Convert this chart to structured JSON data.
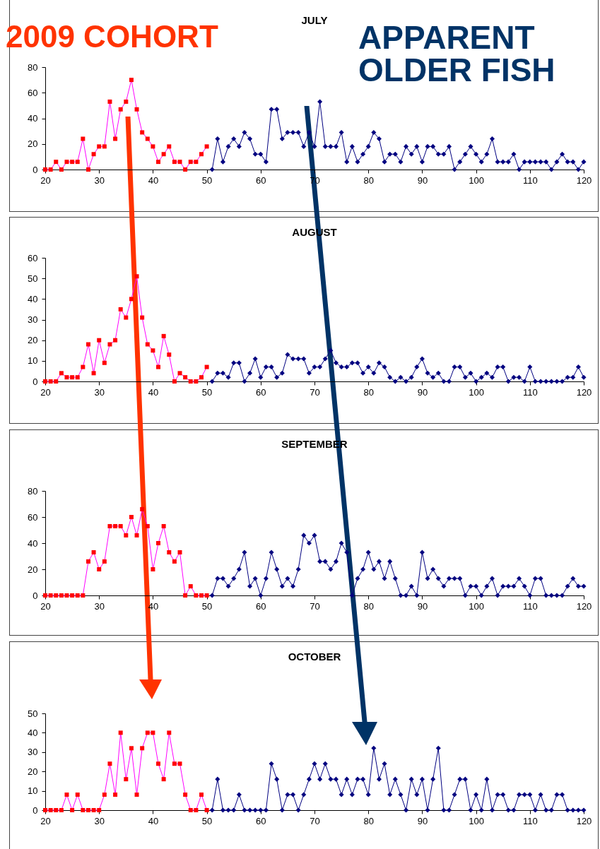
{
  "chart_data": [
    {
      "type": "line",
      "title": "JULY",
      "annotations": [
        "2009 COHORT",
        "APPARENT OLDER FISH"
      ],
      "xlim": [
        20,
        120
      ],
      "xticks": [
        20,
        30,
        40,
        50,
        60,
        70,
        80,
        90,
        100,
        110,
        120
      ],
      "ylim": [
        0,
        80
      ],
      "yticks": [
        0,
        20,
        40,
        60,
        80
      ],
      "series": [
        {
          "color": "#ff0000",
          "marker": "square",
          "x": [
            20,
            21,
            22,
            23,
            24,
            25,
            26,
            27,
            28,
            29,
            30,
            31,
            32,
            33,
            34,
            35,
            36,
            37,
            38,
            39,
            40,
            41,
            42,
            43,
            44,
            45,
            46,
            47,
            48,
            49,
            50
          ],
          "values": [
            0,
            0,
            6,
            0,
            6,
            6,
            6,
            24,
            0,
            12,
            18,
            18,
            53,
            24,
            47,
            53,
            70,
            47,
            29,
            24,
            18,
            6,
            12,
            18,
            6,
            6,
            0,
            6,
            6,
            12,
            18
          ]
        },
        {
          "color": "#000080",
          "marker": "diamond",
          "x": [
            51,
            52,
            53,
            54,
            55,
            56,
            57,
            58,
            59,
            60,
            61,
            62,
            63,
            64,
            65,
            66,
            67,
            68,
            69,
            70,
            71,
            72,
            73,
            74,
            75,
            76,
            77,
            78,
            79,
            80,
            81,
            82,
            83,
            84,
            85,
            86,
            87,
            88,
            89,
            90,
            91,
            92,
            93,
            94,
            95,
            96,
            97,
            98,
            99,
            100,
            101,
            102,
            103,
            104,
            105,
            106,
            107,
            108,
            109,
            110,
            111,
            112,
            113,
            114,
            115,
            116,
            117,
            118,
            119,
            120
          ],
          "values": [
            0,
            24,
            6,
            18,
            24,
            18,
            29,
            24,
            12,
            12,
            6,
            47,
            47,
            24,
            29,
            29,
            29,
            18,
            29,
            18,
            53,
            18,
            18,
            18,
            29,
            6,
            18,
            6,
            12,
            18,
            29,
            24,
            6,
            12,
            12,
            6,
            18,
            12,
            18,
            6,
            18,
            18,
            12,
            12,
            18,
            0,
            6,
            12,
            18,
            12,
            6,
            12,
            24,
            6,
            6,
            6,
            12,
            0,
            6,
            6,
            6,
            6,
            6,
            0,
            6,
            12,
            6,
            6,
            0,
            6
          ]
        }
      ]
    },
    {
      "type": "line",
      "title": "AUGUST",
      "xlim": [
        20,
        120
      ],
      "xticks": [
        20,
        30,
        40,
        50,
        60,
        70,
        80,
        90,
        100,
        110,
        120
      ],
      "ylim": [
        0,
        60
      ],
      "yticks": [
        0,
        10,
        20,
        30,
        40,
        50,
        60
      ],
      "series": [
        {
          "color": "#ff0000",
          "marker": "square",
          "x": [
            20,
            21,
            22,
            23,
            24,
            25,
            26,
            27,
            28,
            29,
            30,
            31,
            32,
            33,
            34,
            35,
            36,
            37,
            38,
            39,
            40,
            41,
            42,
            43,
            44,
            45,
            46,
            47,
            48,
            49,
            50
          ],
          "values": [
            0,
            0,
            0,
            4,
            2,
            2,
            2,
            7,
            18,
            4,
            20,
            9,
            18,
            20,
            35,
            31,
            40,
            51,
            31,
            18,
            15,
            7,
            22,
            13,
            0,
            4,
            2,
            0,
            0,
            2,
            7
          ]
        },
        {
          "color": "#000080",
          "marker": "diamond",
          "x": [
            51,
            52,
            53,
            54,
            55,
            56,
            57,
            58,
            59,
            60,
            61,
            62,
            63,
            64,
            65,
            66,
            67,
            68,
            69,
            70,
            71,
            72,
            73,
            74,
            75,
            76,
            77,
            78,
            79,
            80,
            81,
            82,
            83,
            84,
            85,
            86,
            87,
            88,
            89,
            90,
            91,
            92,
            93,
            94,
            95,
            96,
            97,
            98,
            99,
            100,
            101,
            102,
            103,
            104,
            105,
            106,
            107,
            108,
            109,
            110,
            111,
            112,
            113,
            114,
            115,
            116,
            117,
            118,
            119,
            120
          ],
          "values": [
            0,
            4,
            4,
            2,
            9,
            9,
            0,
            4,
            11,
            2,
            7,
            7,
            2,
            4,
            13,
            11,
            11,
            11,
            4,
            7,
            7,
            11,
            15,
            9,
            7,
            7,
            9,
            9,
            4,
            7,
            4,
            9,
            7,
            2,
            0,
            2,
            0,
            2,
            7,
            11,
            4,
            2,
            4,
            0,
            0,
            7,
            7,
            2,
            4,
            0,
            2,
            4,
            2,
            7,
            7,
            0,
            2,
            2,
            0,
            7,
            0,
            0,
            0,
            0,
            0,
            0,
            2,
            2,
            7,
            2
          ]
        }
      ]
    },
    {
      "type": "line",
      "title": "SEPTEMBER",
      "xlim": [
        20,
        120
      ],
      "xticks": [
        20,
        30,
        40,
        50,
        60,
        70,
        80,
        90,
        100,
        110,
        120
      ],
      "ylim": [
        0,
        80
      ],
      "yticks": [
        0,
        20,
        40,
        60,
        80
      ],
      "series": [
        {
          "color": "#ff0000",
          "marker": "square",
          "x": [
            20,
            21,
            22,
            23,
            24,
            25,
            26,
            27,
            28,
            29,
            30,
            31,
            32,
            33,
            34,
            35,
            36,
            37,
            38,
            39,
            40,
            41,
            42,
            43,
            44,
            45,
            46,
            47,
            48,
            49,
            50
          ],
          "values": [
            0,
            0,
            0,
            0,
            0,
            0,
            0,
            0,
            26,
            33,
            20,
            26,
            53,
            53,
            53,
            46,
            60,
            46,
            66,
            53,
            20,
            40,
            53,
            33,
            26,
            33,
            0,
            7,
            0,
            0,
            0
          ]
        },
        {
          "color": "#000080",
          "marker": "diamond",
          "x": [
            51,
            52,
            53,
            54,
            55,
            56,
            57,
            58,
            59,
            60,
            61,
            62,
            63,
            64,
            65,
            66,
            67,
            68,
            69,
            70,
            71,
            72,
            73,
            74,
            75,
            76,
            77,
            78,
            79,
            80,
            81,
            82,
            83,
            84,
            85,
            86,
            87,
            88,
            89,
            90,
            91,
            92,
            93,
            94,
            95,
            96,
            97,
            98,
            99,
            100,
            101,
            102,
            103,
            104,
            105,
            106,
            107,
            108,
            109,
            110,
            111,
            112,
            113,
            114,
            115,
            116,
            117,
            118,
            119,
            120
          ],
          "values": [
            0,
            13,
            13,
            7,
            13,
            20,
            33,
            7,
            13,
            0,
            13,
            33,
            20,
            7,
            13,
            7,
            20,
            46,
            40,
            46,
            26,
            26,
            20,
            26,
            40,
            33,
            0,
            13,
            20,
            33,
            20,
            26,
            13,
            26,
            13,
            0,
            0,
            7,
            0,
            33,
            13,
            20,
            13,
            7,
            13,
            13,
            13,
            0,
            7,
            7,
            0,
            7,
            13,
            0,
            7,
            7,
            7,
            13,
            7,
            0,
            13,
            13,
            0,
            0,
            0,
            0,
            7,
            13,
            7,
            7
          ]
        }
      ]
    },
    {
      "type": "line",
      "title": "OCTOBER",
      "xlim": [
        20,
        120
      ],
      "xticks": [
        20,
        30,
        40,
        50,
        60,
        70,
        80,
        90,
        100,
        110,
        120
      ],
      "ylim": [
        0,
        50
      ],
      "yticks": [
        0,
        10,
        20,
        30,
        40,
        50
      ],
      "series": [
        {
          "color": "#ff0000",
          "marker": "square",
          "x": [
            20,
            21,
            22,
            23,
            24,
            25,
            26,
            27,
            28,
            29,
            30,
            31,
            32,
            33,
            34,
            35,
            36,
            37,
            38,
            39,
            40,
            41,
            42,
            43,
            44,
            45,
            46,
            47,
            48,
            49,
            50
          ],
          "values": [
            0,
            0,
            0,
            0,
            8,
            0,
            8,
            0,
            0,
            0,
            0,
            8,
            24,
            8,
            40,
            16,
            32,
            8,
            32,
            40,
            40,
            24,
            16,
            40,
            24,
            24,
            8,
            0,
            0,
            8,
            0
          ]
        },
        {
          "color": "#000080",
          "marker": "diamond",
          "x": [
            51,
            52,
            53,
            54,
            55,
            56,
            57,
            58,
            59,
            60,
            61,
            62,
            63,
            64,
            65,
            66,
            67,
            68,
            69,
            70,
            71,
            72,
            73,
            74,
            75,
            76,
            77,
            78,
            79,
            80,
            81,
            82,
            83,
            84,
            85,
            86,
            87,
            88,
            89,
            90,
            91,
            92,
            93,
            94,
            95,
            96,
            97,
            98,
            99,
            100,
            101,
            102,
            103,
            104,
            105,
            106,
            107,
            108,
            109,
            110,
            111,
            112,
            113,
            114,
            115,
            116,
            117,
            118,
            119,
            120
          ],
          "values": [
            0,
            16,
            0,
            0,
            0,
            8,
            0,
            0,
            0,
            0,
            0,
            24,
            16,
            0,
            8,
            8,
            0,
            8,
            16,
            24,
            16,
            24,
            16,
            16,
            8,
            16,
            8,
            16,
            16,
            8,
            32,
            16,
            24,
            8,
            16,
            8,
            0,
            16,
            8,
            16,
            0,
            16,
            32,
            0,
            0,
            8,
            16,
            16,
            0,
            8,
            0,
            16,
            0,
            8,
            8,
            0,
            0,
            8,
            8,
            8,
            0,
            8,
            0,
            0,
            8,
            8,
            0,
            0,
            0,
            0
          ]
        }
      ]
    }
  ]
}
